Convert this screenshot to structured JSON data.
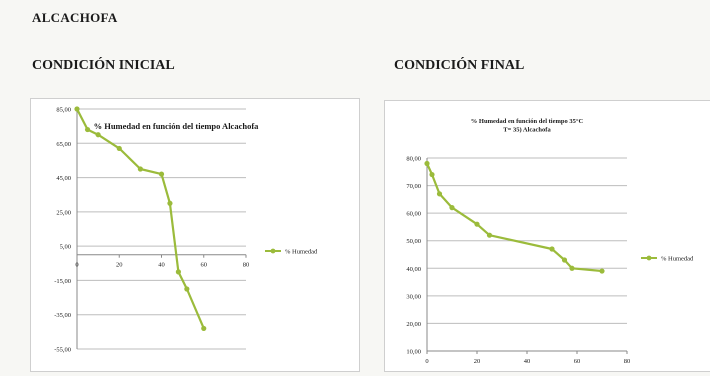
{
  "page": {
    "title": "ALCACHOFA",
    "initial_label": "CONDICIÓN INICIAL",
    "final_label": "CONDICIÓN FINAL"
  },
  "colors": {
    "series": "#9bbb3b",
    "grid": "#bdbdbd",
    "axis": "#888888",
    "text": "#1a1a1a"
  },
  "chart_data": [
    {
      "type": "line",
      "title": "% Humedad en función del tiempo Alcachofa",
      "series": [
        {
          "name": "% Humedad",
          "x": [
            0,
            5,
            10,
            20,
            30,
            40,
            44,
            48,
            52,
            60
          ],
          "y": [
            85.0,
            73.0,
            70.0,
            62.0,
            50.0,
            47.0,
            30.0,
            -10.0,
            -20.0,
            -43.0
          ]
        }
      ],
      "y_ticks": [
        "85,00",
        "65,00",
        "45,00",
        "25,00",
        "5,00",
        "-15,00",
        "-35,00",
        "-55,00"
      ],
      "x_ticks": [
        "0",
        "20",
        "40",
        "60",
        "80"
      ],
      "ylim": [
        -55,
        85
      ],
      "xlim": [
        0,
        80
      ],
      "grid": true,
      "legend": "right"
    },
    {
      "type": "line",
      "title": "% Humedad en función del tiempo 35°C T= 35) Alcachofa",
      "series": [
        {
          "name": "% Humedad",
          "x": [
            0,
            2,
            5,
            10,
            20,
            25,
            50,
            55,
            58,
            70
          ],
          "y": [
            78.0,
            74.0,
            67.0,
            62.0,
            56.0,
            52.0,
            47.0,
            43.0,
            40.0,
            39.0
          ]
        }
      ],
      "y_ticks": [
        "80,00",
        "70,00",
        "60,00",
        "50,00",
        "40,00",
        "30,00",
        "20,00",
        "10,00"
      ],
      "x_ticks": [
        "0",
        "20",
        "40",
        "60",
        "80"
      ],
      "ylim": [
        10,
        80
      ],
      "xlim": [
        0,
        80
      ],
      "grid": true,
      "legend": "right"
    }
  ]
}
